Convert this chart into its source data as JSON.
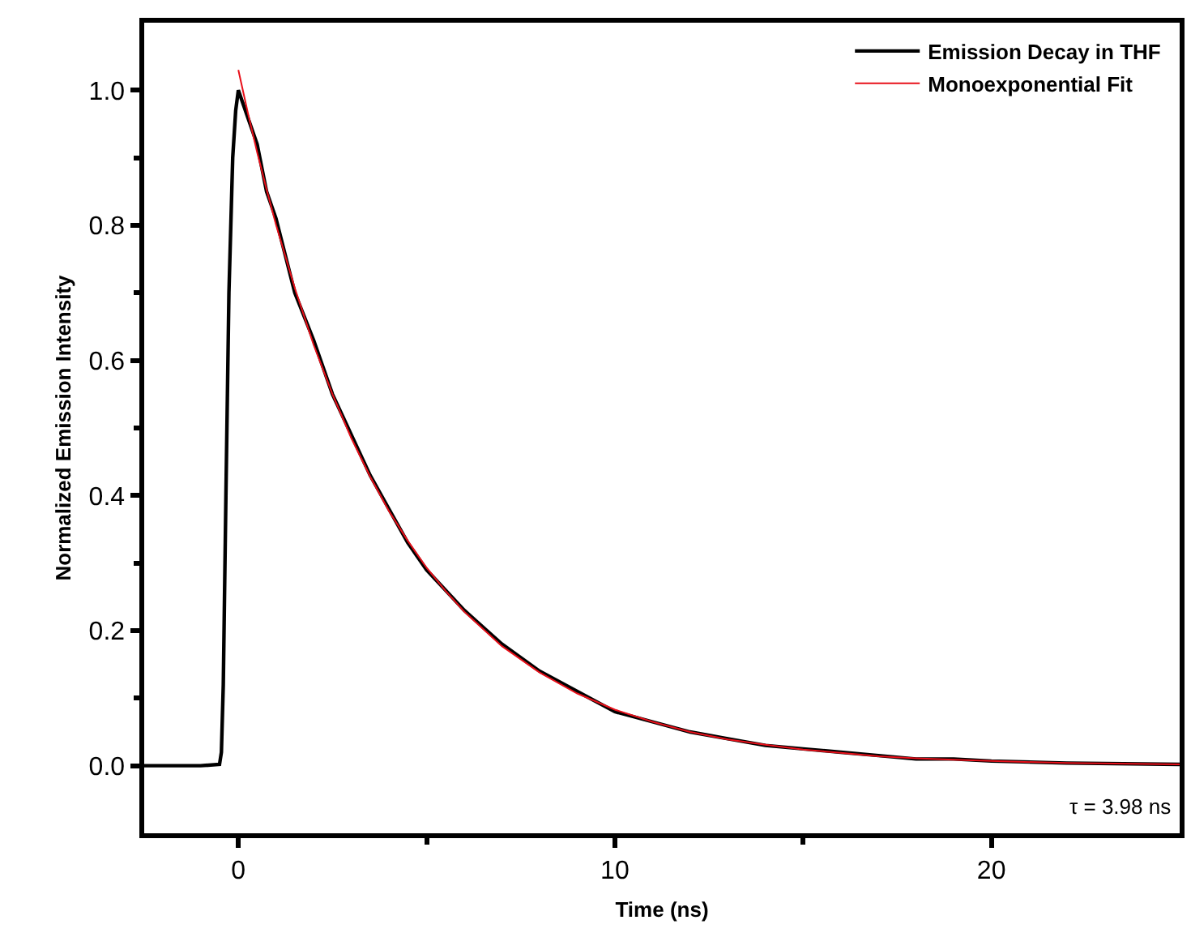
{
  "chart_data": {
    "type": "line",
    "xlabel": "Time (ns)",
    "ylabel": "Normalized Emission Intensity",
    "xlim": [
      -2.5,
      25
    ],
    "ylim": [
      -0.1,
      1.1
    ],
    "xticks": [
      0,
      {
        "value": 5,
        "label": null
      },
      10,
      {
        "value": 15,
        "label": null
      },
      20
    ],
    "yticks": [
      "0.0",
      {
        "value": 0.1,
        "label": null
      },
      0.2,
      {
        "value": 0.3,
        "label": null
      },
      0.4,
      {
        "value": 0.5,
        "label": null
      },
      0.6,
      {
        "value": 0.7,
        "label": null
      },
      0.8,
      {
        "value": 0.9,
        "label": null
      },
      "1.0"
    ],
    "legend": "top right",
    "marker": "none",
    "line_style": "solid",
    "annotations": [
      "τ = 3.98 ns"
    ],
    "series": [
      {
        "name": "Emission Decay in THF",
        "color": "#000000",
        "x": [
          -2.5,
          -1,
          -0.5,
          -0.45,
          -0.4,
          -0.33,
          -0.25,
          -0.15,
          -0.07,
          0,
          0.25,
          0.5,
          0.75,
          1,
          1.5,
          2,
          2.5,
          3,
          3.5,
          4,
          4.5,
          5,
          5.5,
          6,
          7,
          8,
          9,
          10,
          11,
          12,
          13,
          14,
          15,
          16,
          17,
          18,
          19,
          20,
          22,
          25
        ],
        "values": [
          0,
          0,
          0.002,
          0.02,
          0.12,
          0.4,
          0.7,
          0.9,
          0.97,
          1.0,
          0.96,
          0.92,
          0.85,
          0.81,
          0.7,
          0.63,
          0.55,
          0.49,
          0.43,
          0.38,
          0.33,
          0.29,
          0.26,
          0.23,
          0.18,
          0.14,
          0.11,
          0.08,
          0.065,
          0.05,
          0.04,
          0.03,
          0.025,
          0.02,
          0.015,
          0.01,
          0.01,
          0.007,
          0.004,
          0.002
        ]
      },
      {
        "name": "Monoexponential Fit",
        "color": "#e8101a",
        "x": [
          0,
          0.25,
          0.5,
          0.75,
          1,
          1.5,
          2,
          2.5,
          3,
          3.5,
          4,
          4.5,
          5,
          5.5,
          6,
          7,
          8,
          9,
          10,
          11,
          12,
          13,
          14,
          15,
          16,
          17,
          18,
          19,
          20,
          22,
          25
        ],
        "values": [
          1.03,
          0.967,
          0.908,
          0.853,
          0.801,
          0.707,
          0.623,
          0.55,
          0.485,
          0.428,
          0.377,
          0.333,
          0.293,
          0.259,
          0.228,
          0.177,
          0.138,
          0.107,
          0.083,
          0.065,
          0.05,
          0.039,
          0.031,
          0.024,
          0.019,
          0.014,
          0.011,
          0.009,
          0.007,
          0.004,
          0.002
        ]
      }
    ]
  }
}
